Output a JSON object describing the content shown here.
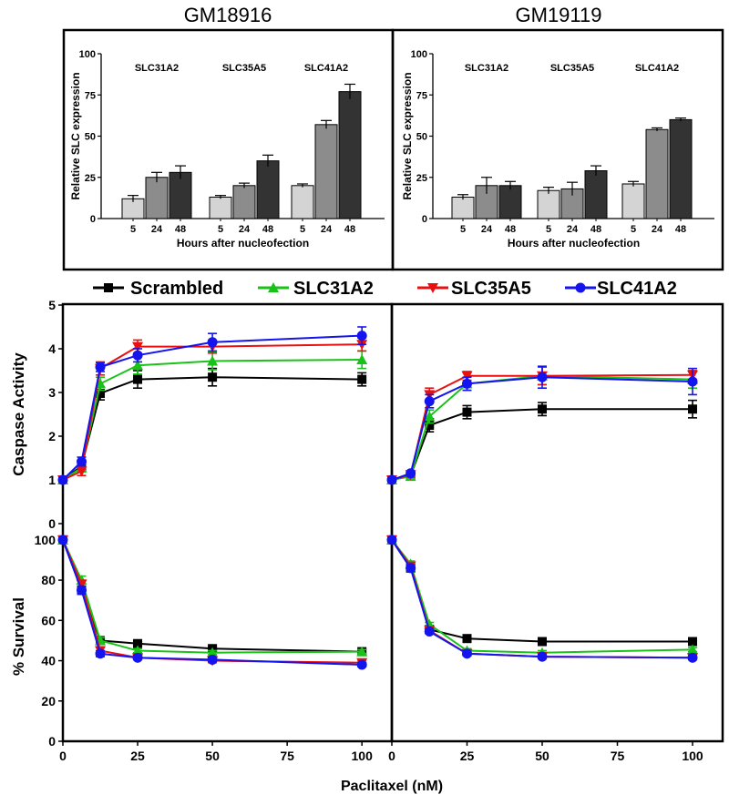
{
  "top_titles": [
    "GM18916",
    "GM19119"
  ],
  "legend": [
    {
      "name": "Scrambled",
      "color": "#000000",
      "marker": "square"
    },
    {
      "name": "SLC31A2",
      "color": "#19c219",
      "marker": "triangle-up"
    },
    {
      "name": "SLC35A5",
      "color": "#e81010",
      "marker": "triangle-down"
    },
    {
      "name": "SLC41A2",
      "color": "#1414ee",
      "marker": "circle"
    }
  ],
  "shared_xlabel": "Paclitaxel (nM)",
  "chart_data": [
    {
      "type": "bar",
      "panel": "GM18916",
      "title": "GM18916",
      "ylabel": "Relative SLC expression",
      "xlabel": "Hours after nucleofection",
      "ylim": [
        0,
        100
      ],
      "yticks": [
        0,
        25,
        50,
        75,
        100
      ],
      "groups": [
        "SLC31A2",
        "SLC35A5",
        "SLC41A2"
      ],
      "categories": [
        "5",
        "24",
        "48"
      ],
      "bar_colors": [
        "#d4d4d4",
        "#8c8c8c",
        "#333333"
      ],
      "values": [
        [
          12,
          25,
          28
        ],
        [
          13,
          20,
          35
        ],
        [
          20,
          57,
          77
        ]
      ],
      "errors": [
        [
          2,
          3,
          4
        ],
        [
          1,
          1.5,
          3.5
        ],
        [
          1,
          2.5,
          4.5
        ]
      ]
    },
    {
      "type": "bar",
      "panel": "GM19119",
      "title": "GM19119",
      "ylabel": "Relative SLC expression",
      "xlabel": "Hours after nucleofection",
      "ylim": [
        0,
        100
      ],
      "yticks": [
        0,
        25,
        50,
        75,
        100
      ],
      "groups": [
        "SLC31A2",
        "SLC35A5",
        "SLC41A2"
      ],
      "categories": [
        "5",
        "24",
        "48"
      ],
      "bar_colors": [
        "#d4d4d4",
        "#8c8c8c",
        "#333333"
      ],
      "values": [
        [
          13,
          20,
          20
        ],
        [
          17,
          18,
          29
        ],
        [
          21,
          54,
          60
        ]
      ],
      "errors": [
        [
          1.5,
          5,
          2.5
        ],
        [
          2,
          4,
          3
        ],
        [
          1.5,
          1,
          1
        ]
      ]
    },
    {
      "type": "line",
      "panel": "GM18916 caspase",
      "ylabel": "Caspase Activity",
      "ylim": [
        0,
        5
      ],
      "yticks": [
        0,
        1,
        2,
        3,
        4,
        5
      ],
      "xlim": [
        0,
        110
      ],
      "x": [
        0,
        6.25,
        12.5,
        25,
        50,
        100
      ],
      "series": [
        {
          "name": "Scrambled",
          "values": [
            1,
            1.32,
            2.98,
            3.3,
            3.35,
            3.3
          ],
          "errors": [
            0.05,
            0.1,
            0.15,
            0.2,
            0.2,
            0.15
          ]
        },
        {
          "name": "SLC31A2",
          "values": [
            1,
            1.28,
            3.2,
            3.62,
            3.72,
            3.75
          ],
          "errors": [
            0.05,
            0.1,
            0.15,
            0.2,
            0.2,
            0.2
          ]
        },
        {
          "name": "SLC35A5",
          "values": [
            1,
            1.2,
            3.55,
            4.05,
            4.05,
            4.1
          ],
          "errors": [
            0.05,
            0.1,
            0.15,
            0.15,
            0.15,
            0.15
          ]
        },
        {
          "name": "SLC41A2",
          "values": [
            1,
            1.42,
            3.58,
            3.85,
            4.15,
            4.3
          ],
          "errors": [
            0.05,
            0.1,
            0.1,
            0.15,
            0.2,
            0.2
          ]
        }
      ]
    },
    {
      "type": "line",
      "panel": "GM19119 caspase",
      "ylim": [
        0,
        5
      ],
      "yticks": [
        0,
        1,
        2,
        3,
        4,
        5
      ],
      "xlim": [
        0,
        110
      ],
      "x": [
        0,
        6.25,
        12.5,
        25,
        50,
        100
      ],
      "series": [
        {
          "name": "Scrambled",
          "values": [
            1,
            1.1,
            2.25,
            2.55,
            2.62,
            2.62
          ],
          "errors": [
            0.05,
            0.05,
            0.15,
            0.15,
            0.15,
            0.2
          ]
        },
        {
          "name": "SLC31A2",
          "values": [
            1,
            1.08,
            2.45,
            3.2,
            3.38,
            3.3
          ],
          "errors": [
            0.05,
            0.05,
            0.15,
            0.15,
            0.2,
            0.2
          ]
        },
        {
          "name": "SLC35A5",
          "values": [
            1,
            1.12,
            2.95,
            3.38,
            3.38,
            3.4
          ],
          "errors": [
            0.05,
            0.05,
            0.15,
            0.1,
            0.2,
            0.1
          ]
        },
        {
          "name": "SLC41A2",
          "values": [
            1,
            1.15,
            2.8,
            3.2,
            3.35,
            3.25
          ],
          "errors": [
            0.05,
            0.05,
            0.15,
            0.15,
            0.25,
            0.3
          ]
        }
      ]
    },
    {
      "type": "line",
      "panel": "GM18916 survival",
      "ylabel": "% Survival",
      "ylim": [
        0,
        104
      ],
      "yticks": [
        0,
        20,
        40,
        60,
        80,
        100
      ],
      "xlim": [
        0,
        110
      ],
      "x": [
        0,
        6.25,
        12.5,
        25,
        50,
        100
      ],
      "xticks": [
        0,
        25,
        50,
        75,
        100
      ],
      "series": [
        {
          "name": "Scrambled",
          "values": [
            100,
            75,
            50,
            48.5,
            46,
            44.5
          ],
          "errors": [
            1,
            2,
            1.5,
            1,
            1,
            1
          ]
        },
        {
          "name": "SLC31A2",
          "values": [
            100,
            80,
            50,
            45,
            44,
            44.5
          ],
          "errors": [
            1,
            2,
            1.5,
            1,
            1,
            1
          ]
        },
        {
          "name": "SLC35A5",
          "values": [
            100,
            78,
            45,
            41.5,
            40,
            39
          ],
          "errors": [
            1,
            2,
            1.5,
            1,
            1,
            1
          ]
        },
        {
          "name": "SLC41A2",
          "values": [
            100,
            75,
            43.5,
            41.5,
            40.5,
            38
          ],
          "errors": [
            1,
            2,
            1.5,
            1,
            1,
            1
          ]
        }
      ]
    },
    {
      "type": "line",
      "panel": "GM19119 survival",
      "ylim": [
        0,
        104
      ],
      "yticks": [
        0,
        20,
        40,
        60,
        80,
        100
      ],
      "xlim": [
        0,
        110
      ],
      "x": [
        0,
        6.25,
        12.5,
        25,
        50,
        100
      ],
      "xticks": [
        0,
        25,
        50,
        75,
        100
      ],
      "series": [
        {
          "name": "Scrambled",
          "values": [
            100,
            86,
            55.5,
            51,
            49.5,
            49.5
          ],
          "errors": [
            1,
            1.5,
            1,
            1,
            1,
            1
          ]
        },
        {
          "name": "SLC31A2",
          "values": [
            100,
            88,
            58,
            45,
            44,
            45.5
          ],
          "errors": [
            1,
            1.5,
            1,
            1,
            1,
            1
          ]
        },
        {
          "name": "SLC35A5",
          "values": [
            100,
            87,
            55,
            43.5,
            42,
            41.5
          ],
          "errors": [
            1,
            1.5,
            1,
            1,
            1,
            1
          ]
        },
        {
          "name": "SLC41A2",
          "values": [
            100,
            86,
            54.5,
            43.5,
            42,
            41.5
          ],
          "errors": [
            1,
            1.5,
            1,
            1,
            1,
            1
          ]
        }
      ]
    }
  ]
}
